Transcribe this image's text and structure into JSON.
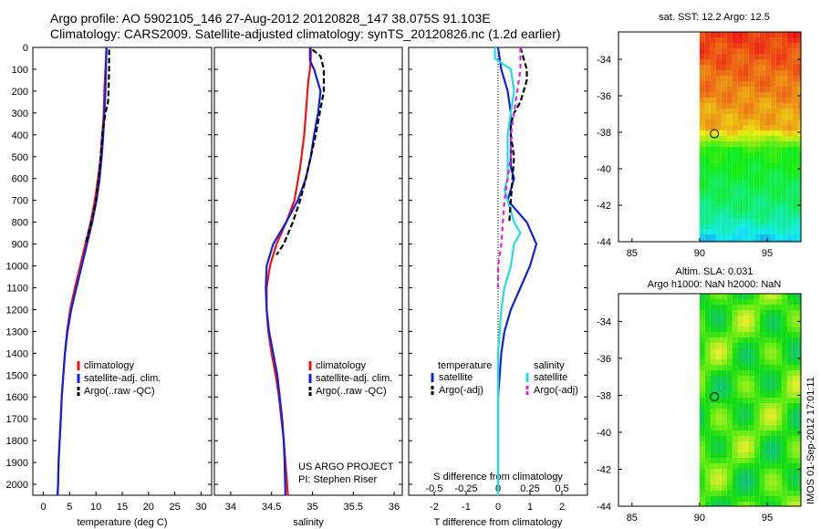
{
  "header": {
    "line1": "Argo profile: AO 5902105_146 27-Aug-2012 20120828_147 38.075S 91.103E",
    "line2": "Climatology: CARS2009. Satellite-adjusted climatology: synTS_20120826.nc (1.2d earlier)"
  },
  "colors": {
    "climatology": "#ee1111",
    "satellite": "#1122dd",
    "argo": "#000000",
    "sal_satellite": "#22dddd",
    "sal_argo": "#dd22dd"
  },
  "credits": {
    "project": "US ARGO PROJECT",
    "pi": "PI: Stephen Riser",
    "stamp": "IMOS 01-Sep-2012 17:01:11"
  },
  "chart_data": [
    {
      "id": "temperature",
      "type": "line",
      "xlabel": "temperature (deg C)",
      "ylabel": "depth",
      "xlim": [
        -2,
        32
      ],
      "ylim": [
        0,
        2050
      ],
      "xticks": [
        0,
        5,
        10,
        15,
        20,
        25,
        30
      ],
      "yticks": [
        0,
        100,
        200,
        300,
        400,
        500,
        600,
        700,
        800,
        900,
        1000,
        1100,
        1200,
        1300,
        1400,
        1500,
        1600,
        1700,
        1800,
        1900,
        2000
      ],
      "legend": [
        "climatology",
        "satellite-adj. clim.",
        "Argo(..raw -QC)"
      ],
      "series": [
        {
          "name": "climatology",
          "color_key": "climatology",
          "dash": "",
          "x": [
            12.0,
            11.8,
            11.6,
            11.5,
            11.2,
            10.9,
            10.4,
            9.8,
            9.0,
            8.0,
            7.0,
            6.0,
            5.1,
            4.5,
            4.1,
            3.8,
            3.5,
            3.3,
            3.1,
            2.9,
            2.8,
            2.7
          ],
          "y": [
            0,
            100,
            200,
            300,
            400,
            500,
            600,
            700,
            800,
            900,
            1000,
            1100,
            1200,
            1300,
            1400,
            1500,
            1600,
            1700,
            1800,
            1900,
            2000,
            2050
          ]
        },
        {
          "name": "satellite-adj. clim.",
          "color_key": "satellite",
          "dash": "",
          "x": [
            12.0,
            11.9,
            11.8,
            11.6,
            11.4,
            11.1,
            10.7,
            10.1,
            9.3,
            8.3,
            7.3,
            6.3,
            5.3,
            4.6,
            4.1,
            3.8,
            3.5,
            3.3,
            3.1,
            2.9,
            2.8,
            2.7
          ],
          "y": [
            0,
            100,
            200,
            300,
            400,
            500,
            600,
            700,
            800,
            900,
            1000,
            1100,
            1200,
            1300,
            1400,
            1500,
            1600,
            1700,
            1800,
            1900,
            2000,
            2050
          ]
        },
        {
          "name": "Argo(..raw -QC)",
          "color_key": "argo",
          "dash": "6,3",
          "x": [
            12.5,
            12.5,
            12.4,
            12.3,
            11.8,
            11.5,
            11.2,
            10.9,
            10.5,
            10.0,
            9.6,
            9.1,
            8.6,
            8.0
          ],
          "y": [
            10,
            100,
            200,
            250,
            300,
            350,
            400,
            500,
            600,
            700,
            750,
            800,
            850,
            900
          ]
        }
      ]
    },
    {
      "id": "salinity",
      "type": "line",
      "xlabel": "salinity",
      "ylabel": "depth",
      "xlim": [
        33.8,
        36.1
      ],
      "ylim": [
        0,
        2050
      ],
      "xticks": [
        34,
        34.5,
        35,
        35.5,
        36
      ],
      "xticklabels": [
        "34",
        "34.5",
        "35",
        "35.5",
        "36"
      ],
      "yticks": [
        0,
        100,
        200,
        300,
        400,
        500,
        600,
        700,
        800,
        900,
        1000,
        1100,
        1200,
        1300,
        1400,
        1500,
        1600,
        1700,
        1800,
        1900,
        2000
      ],
      "legend": [
        "climatology",
        "satellite-adj. clim.",
        "Argo(..raw -QC)"
      ],
      "series": [
        {
          "name": "climatology",
          "color_key": "climatology",
          "dash": "",
          "x": [
            34.98,
            34.98,
            34.97,
            34.95,
            34.93,
            34.9,
            34.85,
            34.78,
            34.68,
            34.56,
            34.48,
            34.44,
            34.44,
            34.46,
            34.5,
            34.55,
            34.59,
            34.62,
            34.65,
            34.67,
            34.69,
            34.7
          ],
          "y": [
            0,
            50,
            100,
            150,
            250,
            400,
            550,
            700,
            800,
            900,
            1000,
            1100,
            1200,
            1300,
            1400,
            1500,
            1600,
            1700,
            1800,
            1900,
            2000,
            2050
          ]
        },
        {
          "name": "satellite-adj. clim.",
          "color_key": "satellite",
          "dash": "",
          "x": [
            34.97,
            34.97,
            35.02,
            35.1,
            35.07,
            35.02,
            34.98,
            34.92,
            34.82,
            34.68,
            34.52,
            34.44,
            34.43,
            34.44,
            34.47,
            34.52,
            34.57,
            34.6,
            34.63,
            34.65,
            34.66,
            34.67
          ],
          "y": [
            0,
            60,
            100,
            200,
            300,
            400,
            500,
            600,
            700,
            800,
            900,
            1000,
            1100,
            1200,
            1300,
            1400,
            1500,
            1600,
            1700,
            1800,
            1900,
            2050
          ]
        },
        {
          "name": "Argo(..raw -QC)",
          "color_key": "argo",
          "dash": "6,3",
          "x": [
            35.0,
            35.1,
            35.14,
            35.14,
            35.09,
            35.04,
            34.98,
            34.92,
            34.85,
            34.76,
            34.65,
            34.56
          ],
          "y": [
            10,
            40,
            100,
            200,
            300,
            400,
            500,
            600,
            700,
            800,
            900,
            950
          ]
        }
      ]
    },
    {
      "id": "difference",
      "type": "line",
      "xlabel": "T difference from climatology",
      "xlabel_top": "S difference from climatology",
      "xlim": [
        -2.8,
        2.8
      ],
      "ylim": [
        0,
        2050
      ],
      "xticks": [
        -2,
        -1,
        0,
        1,
        2
      ],
      "xticklabels": [
        "-2",
        "-1",
        "0",
        "1",
        "2"
      ],
      "xticks_top": [
        -0.5,
        -0.25,
        0,
        0.25,
        0.5
      ],
      "xticklabels_top": [
        "-0.5",
        "-0.25",
        "0",
        "0.25",
        "0.5"
      ],
      "yticks": [
        0,
        100,
        200,
        300,
        400,
        500,
        600,
        700,
        800,
        900,
        1000,
        1100,
        1200,
        1300,
        1400,
        1500,
        1600,
        1700,
        1800,
        1900,
        2000
      ],
      "legend_title_left": "temperature",
      "legend_title_right": "salinity",
      "legend": [
        "satellite",
        "Argo(-adj)",
        "satellite",
        "Argo(-adj)"
      ],
      "series": [
        {
          "name": "temperature satellite",
          "color_key": "satellite",
          "dash": "",
          "x": [
            0.0,
            0.1,
            0.3,
            0.4,
            0.4,
            0.4,
            0.4,
            0.5,
            0.4,
            0.3,
            0.6,
            0.9,
            1.2,
            1.0,
            0.7,
            0.4,
            0.2,
            0.1,
            0.05,
            0.0,
            0.0,
            0.0,
            0.0,
            0.0,
            0.0,
            0.0
          ],
          "y": [
            0,
            100,
            200,
            300,
            400,
            500,
            550,
            600,
            650,
            700,
            750,
            800,
            900,
            1000,
            1100,
            1200,
            1300,
            1400,
            1500,
            1600,
            1700,
            1800,
            1900,
            2000,
            2050,
            2050
          ]
        },
        {
          "name": "salinity satellite",
          "color_key": "sal_satellite",
          "dash": "",
          "x": [
            -0.1,
            -0.1,
            0.4,
            0.5,
            0.4,
            0.3,
            0.3,
            0.3,
            0.3,
            0.2,
            0.3,
            0.5,
            0.7,
            0.5,
            0.4,
            0.2,
            0.1,
            0.05,
            0.0,
            0.0,
            0.0,
            0.0,
            0.0,
            0.0
          ],
          "y": [
            0,
            50,
            100,
            200,
            300,
            400,
            500,
            550,
            600,
            650,
            700,
            800,
            850,
            900,
            1000,
            1100,
            1200,
            1300,
            1400,
            1500,
            1600,
            1700,
            1900,
            2050
          ]
        },
        {
          "name": "temperature Argo(-adj)",
          "color_key": "argo",
          "dash": "6,3",
          "x": [
            0.7,
            0.8,
            0.9,
            0.9,
            0.8,
            0.7,
            0.5,
            0.4,
            0.4,
            0.5,
            0.45,
            0.4,
            0.35
          ],
          "y": [
            0,
            50,
            100,
            150,
            200,
            250,
            300,
            350,
            400,
            500,
            600,
            700,
            800
          ]
        },
        {
          "name": "salinity Argo(-adj)",
          "color_key": "sal_argo",
          "dash": "5,4",
          "x": [
            0.7,
            0.7,
            0.6,
            0.5,
            0.4,
            0.4,
            0.3,
            0.2,
            0.15,
            0.1,
            0.05,
            0.0,
            0.0
          ],
          "y": [
            0,
            100,
            200,
            300,
            400,
            500,
            600,
            700,
            800,
            900,
            950,
            1000,
            1100
          ]
        }
      ]
    },
    {
      "id": "sst_map",
      "type": "heatmap",
      "title": "sat. SST: 12.2 Argo: 12.5",
      "xlim": [
        84,
        97.5
      ],
      "ylim": [
        -44,
        -32.5
      ],
      "xticks": [
        85,
        90,
        95
      ],
      "yticks": [
        -44,
        -42,
        -40,
        -38,
        -36,
        -34
      ],
      "xticklabels": [
        "85",
        "90",
        "95"
      ],
      "yticklabels": [
        "-44",
        "-42",
        "-40",
        "-38",
        "-36",
        "-34"
      ],
      "marker": {
        "lon": 91.1,
        "lat": -38.08
      }
    },
    {
      "id": "sla_map",
      "type": "heatmap",
      "title": "Altim. SLA: 0.031",
      "subtitle": "Argo h1000: NaN h2000: NaN",
      "xlim": [
        84,
        97.5
      ],
      "ylim": [
        -44,
        -32.5
      ],
      "xticks": [
        85,
        90,
        95
      ],
      "yticks": [
        -44,
        -42,
        -40,
        -38,
        -36,
        -34
      ],
      "xticklabels": [
        "85",
        "90",
        "95"
      ],
      "yticklabels": [
        "-44",
        "-42",
        "-40",
        "-38",
        "-36",
        "-34"
      ],
      "marker": {
        "lon": 91.1,
        "lat": -38.08
      }
    }
  ]
}
